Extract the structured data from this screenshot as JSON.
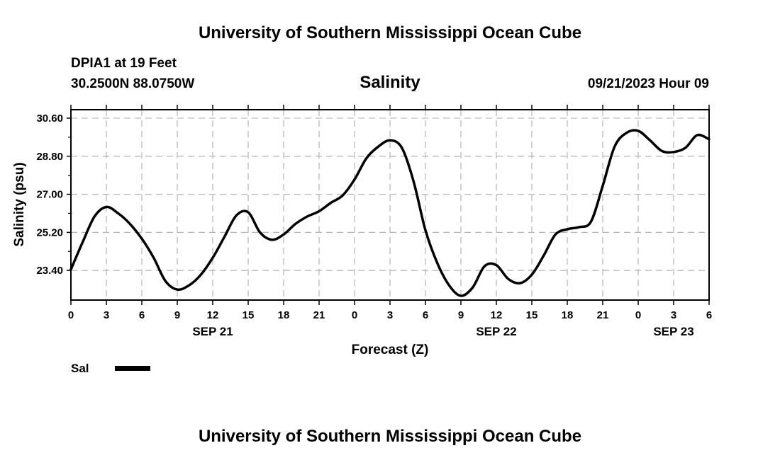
{
  "header": {
    "title_top": "University of Southern Mississippi Ocean Cube",
    "station": "DPIA1 at 19 Feet",
    "coords": "30.2500N  88.0750W",
    "chart_title": "Salinity",
    "datetime": "09/21/2023 Hour 09",
    "title_bottom": "University of Southern Mississippi Ocean Cube"
  },
  "colors": {
    "line": "#000000",
    "grid": "#b4b4b4",
    "background": "#ffffff"
  },
  "chart_data": {
    "type": "line",
    "title": "Salinity",
    "xlabel": "Forecast (Z)",
    "ylabel": "Salinity (psu)",
    "xlim": [
      0,
      54
    ],
    "ylim": [
      22.0,
      31.0
    ],
    "grid": true,
    "legend_position": "bottom-left",
    "x_ticks": [
      0,
      3,
      6,
      9,
      12,
      15,
      18,
      21,
      24,
      27,
      30,
      33,
      36,
      39,
      42,
      45,
      48,
      51,
      54
    ],
    "x_tick_labels": [
      "0",
      "3",
      "6",
      "9",
      "12",
      "15",
      "18",
      "21",
      "0",
      "3",
      "6",
      "9",
      "12",
      "15",
      "18",
      "21",
      "0",
      "3",
      "6"
    ],
    "date_labels": [
      {
        "x": 12,
        "label": "SEP 21"
      },
      {
        "x": 36,
        "label": "SEP 22"
      },
      {
        "x": 51,
        "label": "SEP 23"
      }
    ],
    "y_ticks": [
      23.4,
      25.2,
      27.0,
      28.8,
      30.6
    ],
    "y_tick_labels": [
      "23.40",
      "25.20",
      "27.00",
      "28.80",
      "30.60"
    ],
    "series": [
      {
        "name": "Sal",
        "x": [
          0,
          1,
          2,
          3,
          4,
          5,
          6,
          7,
          8,
          9,
          10,
          11,
          12,
          13,
          14,
          15,
          16,
          17,
          18,
          19,
          20,
          21,
          22,
          23,
          24,
          25,
          26,
          27,
          28,
          29,
          30,
          31,
          32,
          33,
          34,
          35,
          36,
          37,
          38,
          39,
          40,
          41,
          42,
          43,
          44,
          45,
          46,
          47,
          48,
          49,
          50,
          51,
          52,
          53,
          54
        ],
        "y": [
          23.45,
          24.75,
          25.95,
          26.4,
          26.1,
          25.6,
          24.9,
          24.0,
          22.9,
          22.5,
          22.7,
          23.2,
          24.0,
          25.0,
          26.0,
          26.15,
          25.2,
          24.85,
          25.1,
          25.6,
          25.95,
          26.2,
          26.6,
          26.95,
          27.7,
          28.7,
          29.25,
          29.55,
          29.2,
          27.6,
          25.3,
          23.75,
          22.7,
          22.2,
          22.6,
          23.6,
          23.65,
          23.0,
          22.8,
          23.2,
          24.1,
          25.1,
          25.35,
          25.45,
          25.7,
          27.4,
          29.25,
          29.9,
          30.0,
          29.55,
          29.05,
          29.0,
          29.2,
          29.8,
          29.6
        ]
      }
    ]
  }
}
